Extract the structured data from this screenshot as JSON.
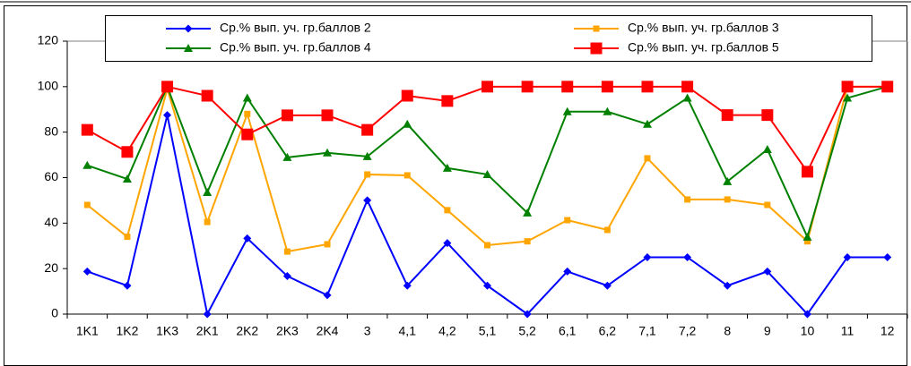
{
  "chart_data": {
    "type": "line",
    "categories": [
      "1K1",
      "1K2",
      "1K3",
      "2K1",
      "2K2",
      "2K3",
      "2K4",
      "3",
      "4,1",
      "4,2",
      "5,1",
      "5,2",
      "6,1",
      "6,2",
      "7,1",
      "7,2",
      "8",
      "9",
      "10",
      "11",
      "12"
    ],
    "series": [
      {
        "name": "Ср.% вып. уч. гр.баллов 2",
        "color": "#0000ff",
        "marker": "diamond",
        "values": [
          18.75,
          12.5,
          87.5,
          0,
          33.3,
          16.7,
          8.3,
          50,
          12.5,
          31.25,
          12.5,
          0,
          18.75,
          12.5,
          25,
          25,
          12.5,
          18.75,
          0,
          25,
          25
        ]
      },
      {
        "name": "Ср.% вып. уч. гр.баллов 3",
        "color": "#ffa500",
        "marker": "square",
        "values": [
          48,
          34,
          99,
          40.5,
          88,
          27.5,
          30.7,
          61.4,
          61,
          45.7,
          30.3,
          32,
          41.3,
          37,
          68.5,
          50.4,
          50.4,
          48,
          32,
          100,
          100
        ]
      },
      {
        "name": "Ср.% вып. уч. гр.баллов 4",
        "color": "#008000",
        "marker": "triangle",
        "values": [
          65.4,
          59.4,
          100,
          53.5,
          95,
          68.9,
          70.9,
          69.3,
          83.5,
          64.2,
          61.4,
          44.5,
          89,
          89,
          83.5,
          95,
          58.3,
          72.4,
          33.9,
          95,
          100
        ]
      },
      {
        "name": "Ср.% вып. уч. гр.баллов 5",
        "color": "#ff0000",
        "marker": "bigsquare",
        "values": [
          81,
          71.3,
          100,
          96,
          79,
          87.4,
          87.4,
          81,
          96,
          93.7,
          100,
          100,
          100,
          100,
          100,
          100,
          87.5,
          87.5,
          62.6,
          100,
          100
        ]
      }
    ],
    "ylim": [
      0,
      120
    ],
    "yticks": [
      0,
      20,
      40,
      60,
      80,
      100,
      120
    ],
    "grid": false
  }
}
